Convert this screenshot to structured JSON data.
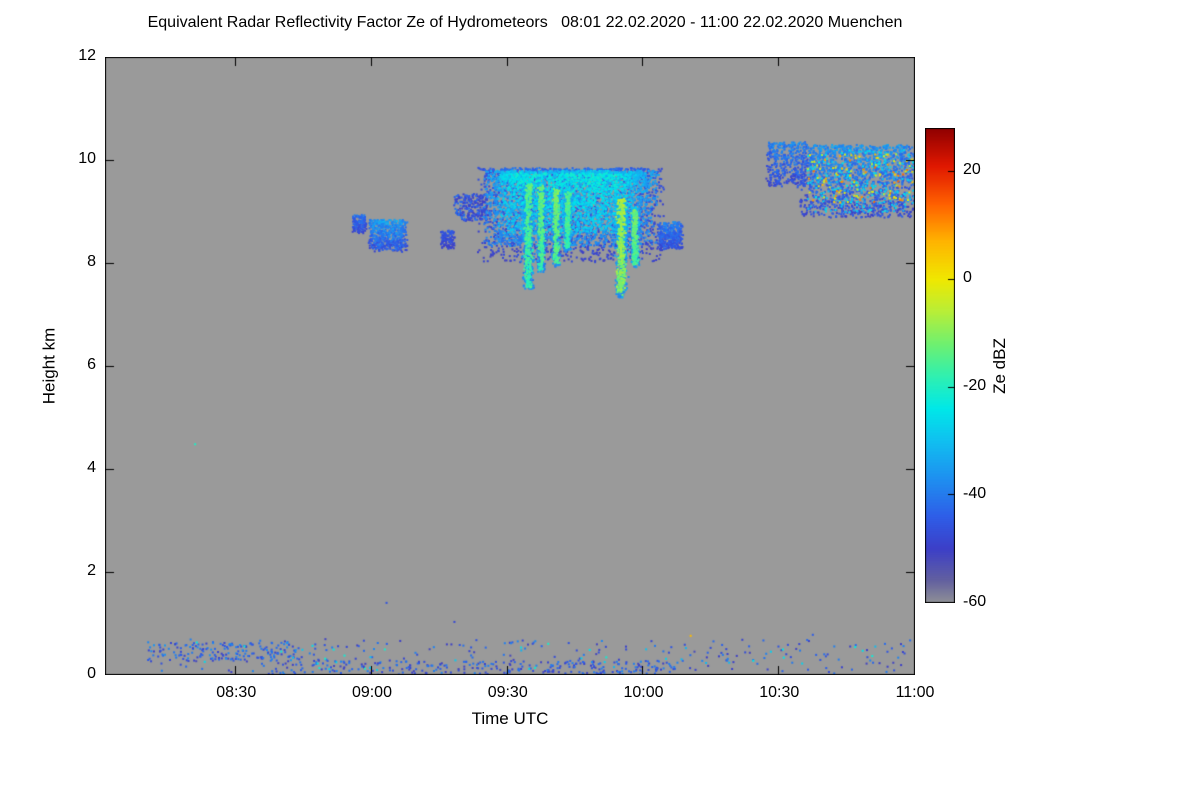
{
  "chart_data": {
    "type": "heatmap",
    "title": "Equivalent Radar Reflectivity Factor Ze of Hydrometeors   08:01 22.02.2020 - 11:00 22.02.2020 Muenchen",
    "xlabel": "Time UTC",
    "ylabel": "Height km",
    "colorbar_label": "Ze dBZ",
    "x_range_hours": [
      8.0167,
      11.0
    ],
    "y_range_km": [
      0,
      12
    ],
    "z_range_dbz": [
      -60,
      28
    ],
    "x_ticks": [
      {
        "hours": 8.5,
        "label": "08:30"
      },
      {
        "hours": 9.0,
        "label": "09:00"
      },
      {
        "hours": 9.5,
        "label": "09:30"
      },
      {
        "hours": 10.0,
        "label": "10:00"
      },
      {
        "hours": 10.5,
        "label": "10:30"
      },
      {
        "hours": 11.0,
        "label": "11:00"
      }
    ],
    "y_ticks": [
      {
        "km": 0,
        "label": "0"
      },
      {
        "km": 2,
        "label": "2"
      },
      {
        "km": 4,
        "label": "4"
      },
      {
        "km": 6,
        "label": "6"
      },
      {
        "km": 8,
        "label": "8"
      },
      {
        "km": 10,
        "label": "10"
      },
      {
        "km": 12,
        "label": "12"
      }
    ],
    "colorbar_ticks": [
      {
        "dbz": 20,
        "label": "20"
      },
      {
        "dbz": 0,
        "label": "0"
      },
      {
        "dbz": -20,
        "label": "-20"
      },
      {
        "dbz": -40,
        "label": "-40"
      },
      {
        "dbz": -60,
        "label": "-60"
      }
    ],
    "no_echo_color": "#9a9a9a",
    "colormap": [
      [
        -60,
        "#8f9096"
      ],
      [
        -56,
        "#63619f"
      ],
      [
        -50,
        "#3c3fc8"
      ],
      [
        -44,
        "#2e5ee8"
      ],
      [
        -37,
        "#1e90f0"
      ],
      [
        -30,
        "#10c0f0"
      ],
      [
        -24,
        "#00e8e8"
      ],
      [
        -18,
        "#30f0b0"
      ],
      [
        -12,
        "#70f070"
      ],
      [
        -6,
        "#b8ee38"
      ],
      [
        0,
        "#f0e800"
      ],
      [
        7,
        "#ffb400"
      ],
      [
        14,
        "#ff6000"
      ],
      [
        21,
        "#e01800"
      ],
      [
        28,
        "#900000"
      ]
    ],
    "echo_regions": [
      {
        "name": "pre-patch-a",
        "kind": "cloud",
        "seed": 11,
        "t": [
          8.925,
          8.975
        ],
        "h": [
          8.6,
          8.95
        ],
        "dbz": [
          -50,
          -38
        ],
        "count": 140,
        "size": 2,
        "bias": 1.0
      },
      {
        "name": "pre-patch-b",
        "kind": "cloud",
        "seed": 12,
        "t": [
          8.985,
          9.125
        ],
        "h": [
          8.25,
          8.85
        ],
        "dbz": [
          -50,
          -30
        ],
        "count": 560,
        "size": 2,
        "bias": 1.0
      },
      {
        "name": "speck-patch",
        "kind": "cloud",
        "seed": 13,
        "t": [
          9.25,
          9.3
        ],
        "h": [
          8.3,
          8.65
        ],
        "dbz": [
          -52,
          -42
        ],
        "count": 110,
        "size": 2,
        "bias": 1.0
      },
      {
        "name": "leading-specks",
        "kind": "scatter",
        "seed": 14,
        "t": [
          9.3,
          9.42
        ],
        "h": [
          8.85,
          9.35
        ],
        "dbz": [
          -52,
          -40
        ],
        "count": 240,
        "size": 2
      },
      {
        "name": "main-cloud-fringe",
        "kind": "cloud",
        "seed": 15,
        "t": [
          9.385,
          10.07
        ],
        "h": [
          8.05,
          9.85
        ],
        "dbz": [
          -52,
          -40
        ],
        "count": 2200,
        "size": 2,
        "bias": 1.5
      },
      {
        "name": "main-cloud-body",
        "kind": "cloud",
        "seed": 16,
        "t": [
          9.41,
          10.05
        ],
        "h": [
          8.35,
          9.8
        ],
        "dbz": [
          -42,
          -26
        ],
        "count": 3000,
        "size": 2,
        "bias": 1.45
      },
      {
        "name": "main-cloud-core",
        "kind": "cloud",
        "seed": 17,
        "t": [
          9.46,
          9.97
        ],
        "h": [
          8.6,
          9.75
        ],
        "dbz": [
          -32,
          -20
        ],
        "count": 1300,
        "size": 2,
        "bias": 1.3
      },
      {
        "name": "fall-streak-1-halo",
        "kind": "streak",
        "seed": 21,
        "t": [
          9.545,
          9.6
        ],
        "h": [
          7.5,
          9.55
        ],
        "dbz": [
          -42,
          -28
        ],
        "count": 380,
        "size": 2
      },
      {
        "name": "fall-streak-1-core",
        "kind": "streak",
        "seed": 22,
        "t": [
          9.555,
          9.59
        ],
        "h": [
          7.55,
          9.55
        ],
        "dbz": [
          -22,
          -10
        ],
        "count": 300,
        "size": 2
      },
      {
        "name": "fall-streak-2-halo",
        "kind": "streak",
        "seed": 23,
        "t": [
          9.6,
          9.64
        ],
        "h": [
          7.85,
          9.5
        ],
        "dbz": [
          -42,
          -28
        ],
        "count": 300,
        "size": 2
      },
      {
        "name": "fall-streak-2-core",
        "kind": "streak",
        "seed": 24,
        "t": [
          9.607,
          9.633
        ],
        "h": [
          7.9,
          9.5
        ],
        "dbz": [
          -20,
          -9
        ],
        "count": 240,
        "size": 2
      },
      {
        "name": "fall-streak-3-halo",
        "kind": "streak",
        "seed": 25,
        "t": [
          9.655,
          9.695
        ],
        "h": [
          7.95,
          9.45
        ],
        "dbz": [
          -42,
          -28
        ],
        "count": 280,
        "size": 2
      },
      {
        "name": "fall-streak-3-core",
        "kind": "streak",
        "seed": 26,
        "t": [
          9.662,
          9.688
        ],
        "h": [
          8.0,
          9.45
        ],
        "dbz": [
          -19,
          -8
        ],
        "count": 230,
        "size": 2
      },
      {
        "name": "fall-streak-4-halo",
        "kind": "streak",
        "seed": 27,
        "t": [
          9.7,
          9.735
        ],
        "h": [
          8.25,
          9.4
        ],
        "dbz": [
          -40,
          -27
        ],
        "count": 220,
        "size": 2
      },
      {
        "name": "fall-streak-4-core",
        "kind": "streak",
        "seed": 28,
        "t": [
          9.706,
          9.729
        ],
        "h": [
          8.3,
          9.4
        ],
        "dbz": [
          -21,
          -11
        ],
        "count": 170,
        "size": 2
      },
      {
        "name": "fall-streak-5-halo",
        "kind": "streak",
        "seed": 29,
        "t": [
          9.885,
          9.945
        ],
        "h": [
          7.35,
          9.3
        ],
        "dbz": [
          -40,
          -26
        ],
        "count": 420,
        "size": 2
      },
      {
        "name": "fall-streak-5-core",
        "kind": "streak",
        "seed": 30,
        "t": [
          9.895,
          9.935
        ],
        "h": [
          7.4,
          9.25
        ],
        "dbz": [
          -15,
          -3
        ],
        "count": 340,
        "size": 2
      },
      {
        "name": "fall-streak-6-halo",
        "kind": "streak",
        "seed": 31,
        "t": [
          9.945,
          9.985
        ],
        "h": [
          7.95,
          9.1
        ],
        "dbz": [
          -40,
          -27
        ],
        "count": 240,
        "size": 2
      },
      {
        "name": "fall-streak-6-core",
        "kind": "streak",
        "seed": 32,
        "t": [
          9.952,
          9.978
        ],
        "h": [
          8.0,
          9.05
        ],
        "dbz": [
          -19,
          -8
        ],
        "count": 190,
        "size": 2
      },
      {
        "name": "trailing-bits",
        "kind": "cloud",
        "seed": 33,
        "t": [
          10.05,
          10.14
        ],
        "h": [
          8.3,
          8.8
        ],
        "dbz": [
          -50,
          -36
        ],
        "count": 380,
        "size": 2,
        "bias": 1.0
      },
      {
        "name": "right-cloud-a",
        "kind": "cloud",
        "seed": 34,
        "t": [
          10.45,
          10.6
        ],
        "h": [
          9.5,
          10.35
        ],
        "dbz": [
          -52,
          -34
        ],
        "count": 420,
        "size": 2,
        "bias": 1.2
      },
      {
        "name": "right-cloud-b",
        "kind": "cloud",
        "seed": 35,
        "t": [
          10.57,
          11.0
        ],
        "h": [
          8.9,
          10.3
        ],
        "dbz": [
          -52,
          -32
        ],
        "count": 1600,
        "size": 2,
        "bias": 1.15
      },
      {
        "name": "right-cloud-cyan",
        "kind": "scatter",
        "seed": 37,
        "t": [
          10.6,
          11.0
        ],
        "h": [
          9.0,
          10.2
        ],
        "dbz": [
          -34,
          -24
        ],
        "count": 280,
        "size": 2
      },
      {
        "name": "right-cloud-hot-specks",
        "kind": "scatter",
        "seed": 36,
        "t": [
          10.6,
          10.99
        ],
        "h": [
          9.2,
          10.15
        ],
        "dbz": [
          -8,
          14
        ],
        "count": 110,
        "size": 2
      },
      {
        "name": "boundary-layer-left",
        "kind": "scatter",
        "seed": 38,
        "t": [
          8.17,
          8.75
        ],
        "h": [
          0.3,
          0.65
        ],
        "dbz": [
          -50,
          -36
        ],
        "count": 170,
        "size": 2
      },
      {
        "name": "boundary-layer-low",
        "kind": "scatter",
        "seed": 39,
        "t": [
          8.6,
          10.1
        ],
        "h": [
          0.02,
          0.3
        ],
        "dbz": [
          -52,
          -38
        ],
        "count": 260,
        "size": 2
      },
      {
        "name": "boundary-layer-general",
        "kind": "scatter",
        "seed": 40,
        "t": [
          8.2,
          11.0
        ],
        "h": [
          0.05,
          0.7
        ],
        "dbz": [
          -52,
          -38
        ],
        "count": 250,
        "size": 2
      },
      {
        "name": "boundary-layer-bright",
        "kind": "scatter",
        "seed": 41,
        "t": [
          8.3,
          10.9
        ],
        "h": [
          0.1,
          0.65
        ],
        "dbz": [
          -32,
          -20
        ],
        "count": 45,
        "size": 2
      }
    ],
    "echo_points": [
      {
        "t": 8.345,
        "h": 4.5,
        "dbz": -20
      },
      {
        "t": 9.05,
        "h": 1.42,
        "dbz": -46
      },
      {
        "t": 9.3,
        "h": 1.05,
        "dbz": -48
      },
      {
        "t": 10.17,
        "h": 0.78,
        "dbz": 6
      },
      {
        "t": 10.62,
        "h": 0.8,
        "dbz": -44
      }
    ]
  }
}
